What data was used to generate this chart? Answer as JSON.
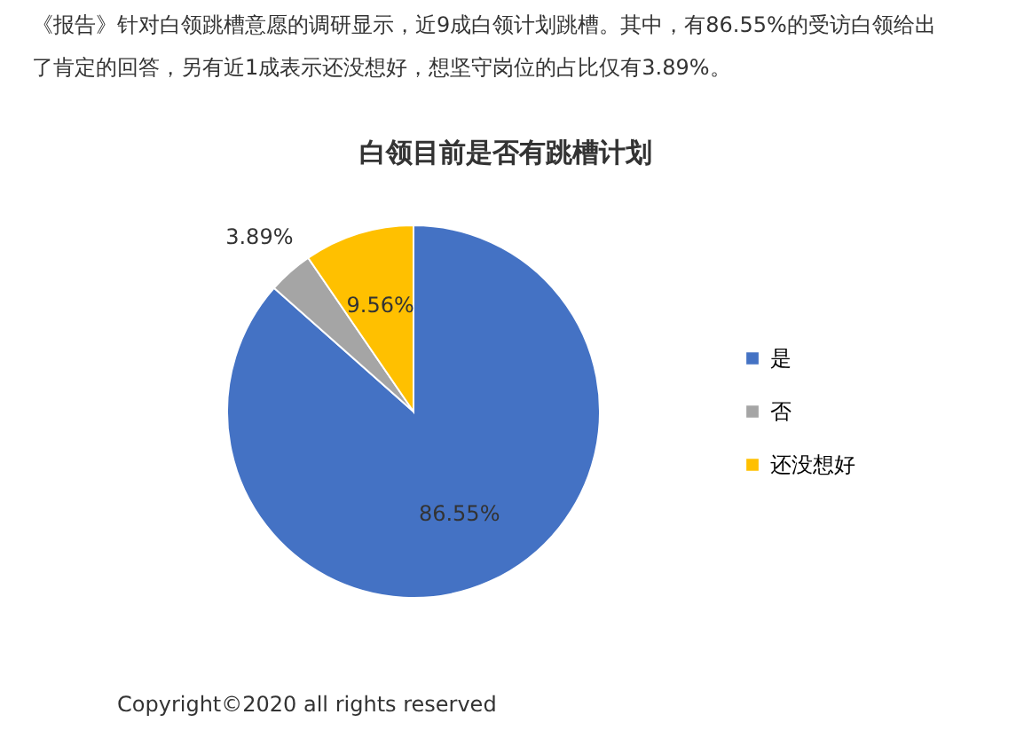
{
  "chart_data": {
    "type": "pie",
    "title": "白领目前是否有跳槽计划",
    "categories": [
      "是",
      "否",
      "还没想好"
    ],
    "values": [
      86.55,
      3.89,
      9.56
    ],
    "colors": [
      "#4472c4",
      "#a5a5a5",
      "#ffc000"
    ],
    "value_labels": [
      "86.55%",
      "3.89%",
      "9.56%"
    ],
    "legend": "right",
    "annotations": [
      "《报告》针对白领跳槽意愿的调研显示，近9成白领计划跳槽。其中，有86.55%的受访白领给出了肯定的回答，另有近1成表示还没想好，想坚守岗位的占比仅有3.89%。",
      "Copyright©2020 all rights reserved"
    ]
  }
}
